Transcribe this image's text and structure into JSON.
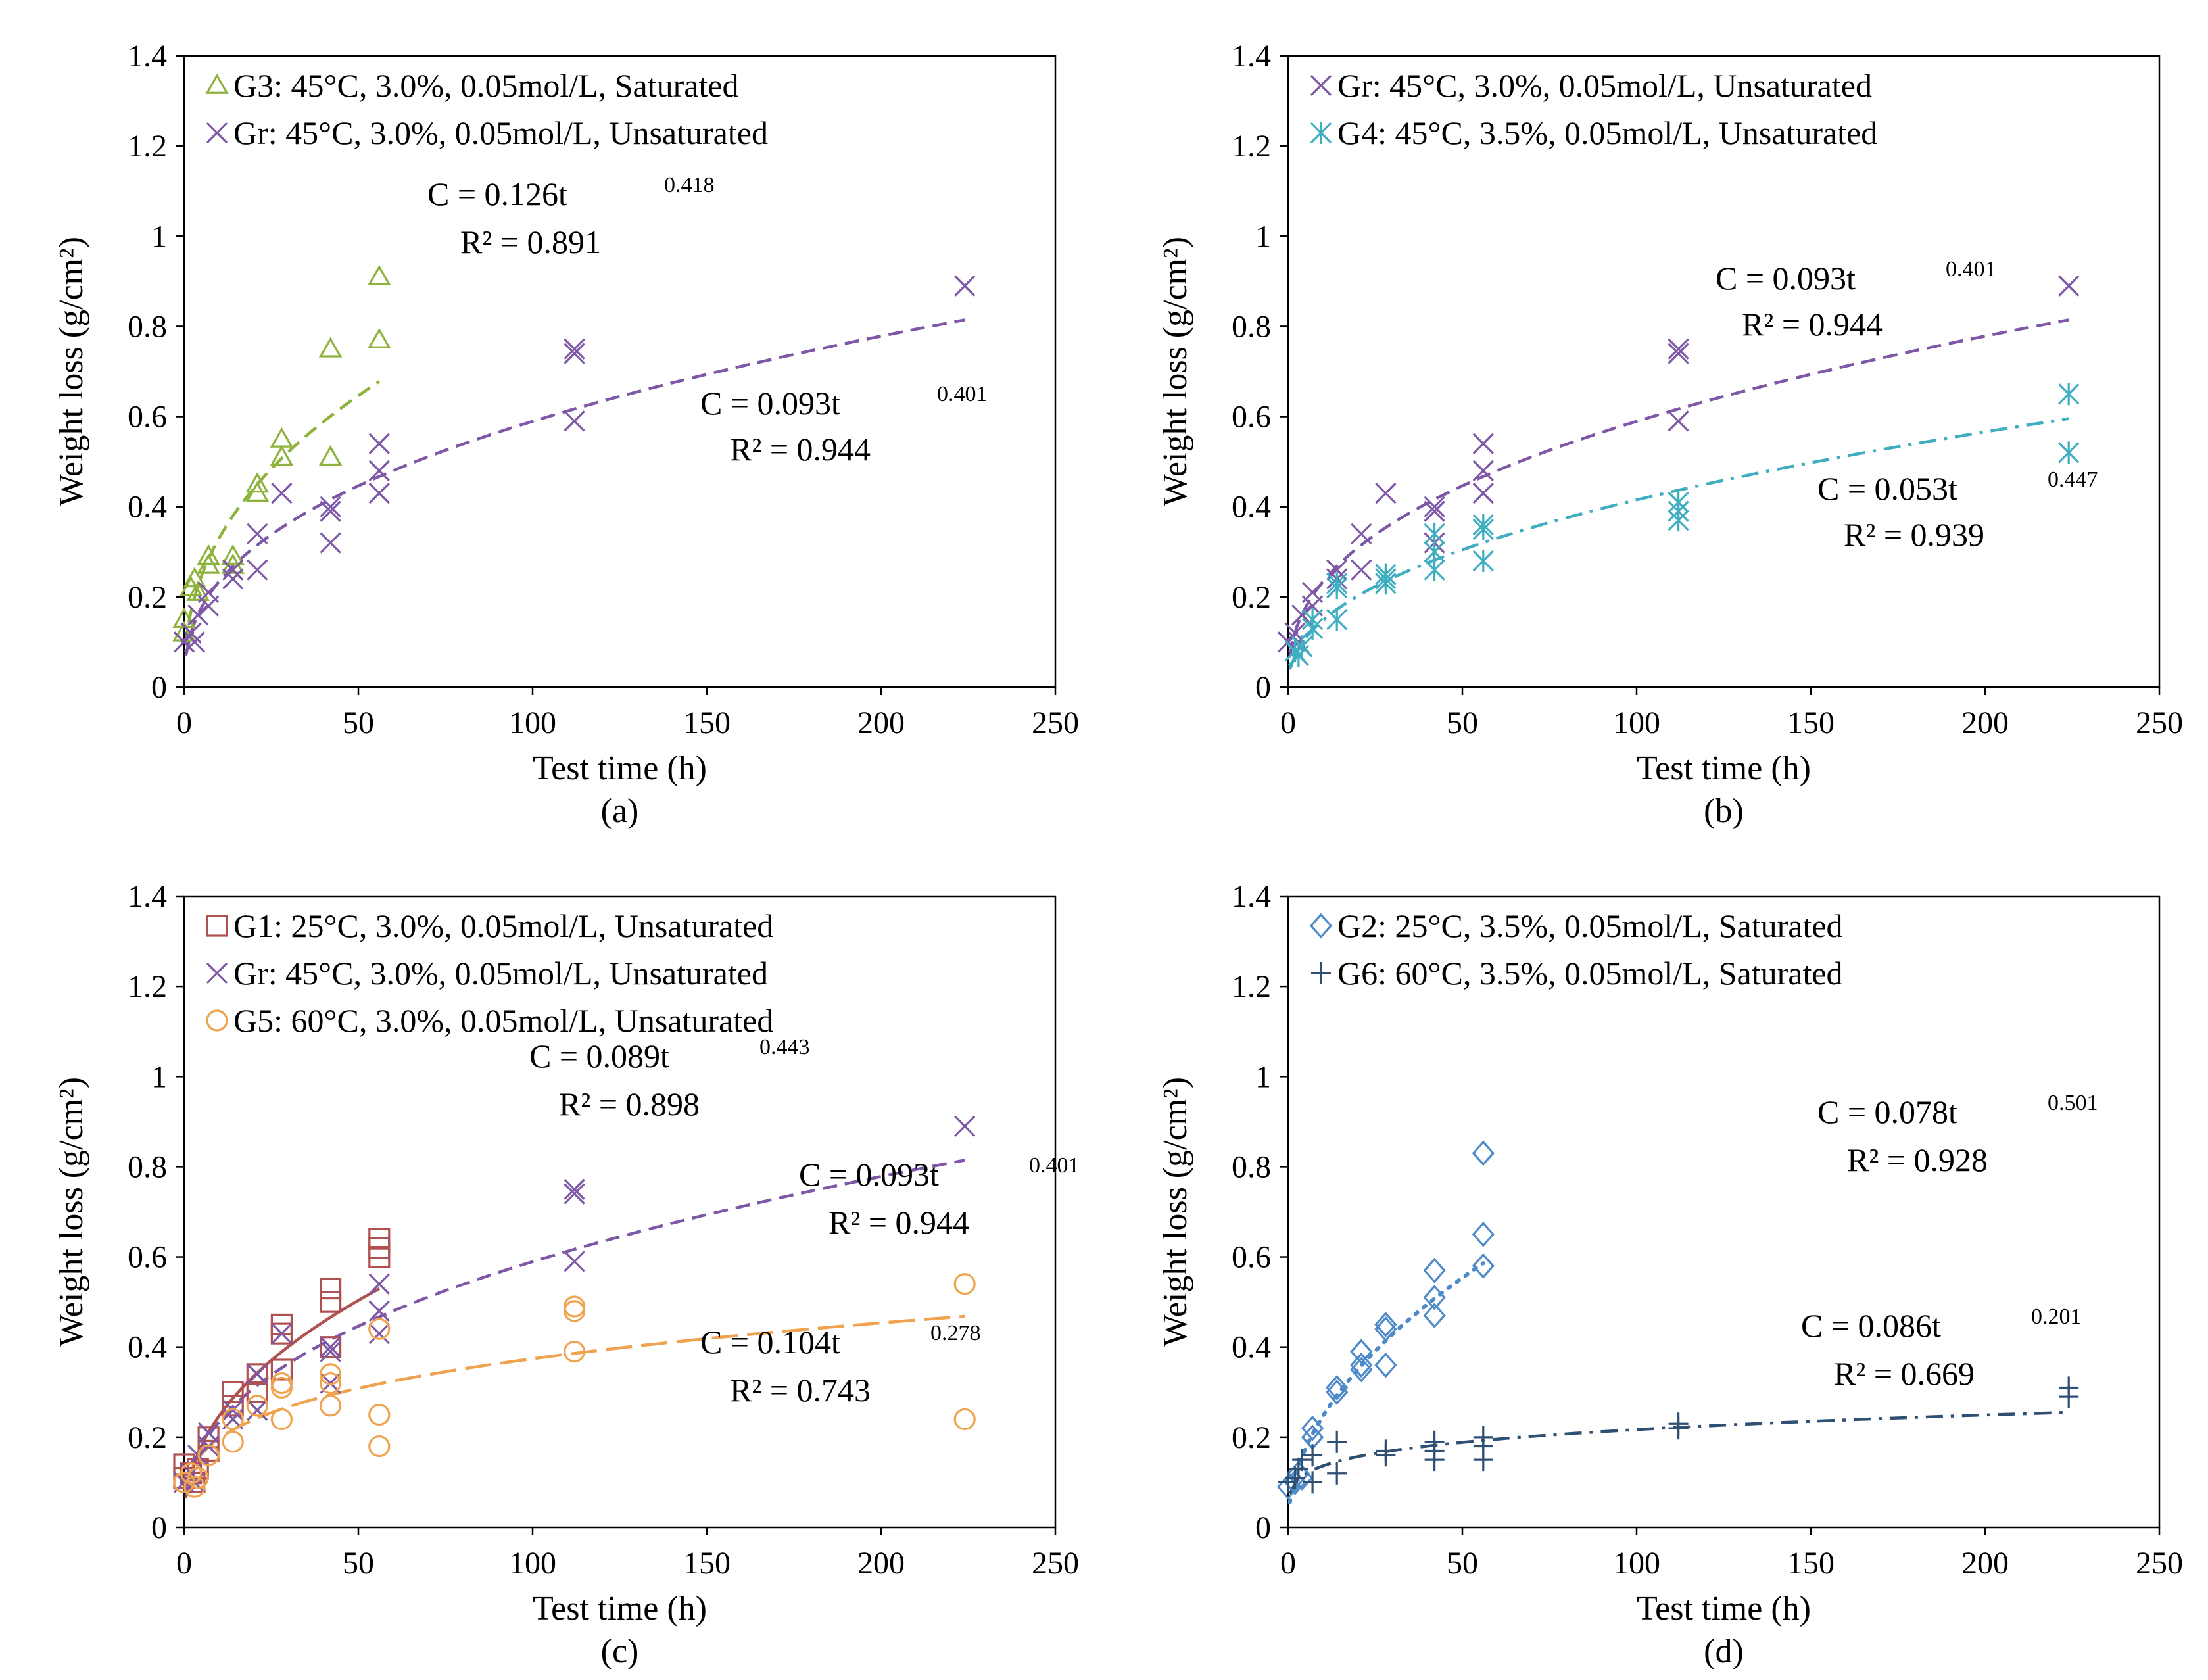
{
  "chart_data": [
    {
      "type": "scatter",
      "panel_label": "(a)",
      "xlabel": "Test time (h)",
      "ylabel": "Weight loss  (g/cm²)",
      "xlim": [
        0,
        250
      ],
      "ylim": [
        0,
        1.4
      ],
      "xticks": [
        0,
        50,
        100,
        150,
        200,
        250
      ],
      "yticks": [
        0,
        0.2,
        0.4,
        0.6,
        0.8,
        1,
        1.2,
        1.4
      ],
      "xtick_labels": [
        "0",
        "50",
        "100",
        "150",
        "200",
        "250"
      ],
      "ytick_labels": [
        "0",
        "0.2",
        "0.4",
        "0.6",
        "0.8",
        "1",
        "1.2",
        "1.4"
      ],
      "legend_position": "top-left",
      "series": [
        {
          "name": "G3: 45°C, 3.0%, 0.05mol/L, Saturated",
          "color": "#8db33d",
          "marker": "triangle",
          "fit_style": "dashed",
          "fit": {
            "a": 0.126,
            "b": 0.418
          },
          "points": [
            [
              0,
              0.12
            ],
            [
              0,
              0.15
            ],
            [
              2,
              0.22
            ],
            [
              3,
              0.24
            ],
            [
              4,
              0.21
            ],
            [
              7,
              0.27
            ],
            [
              7,
              0.29
            ],
            [
              14,
              0.27
            ],
            [
              14,
              0.29
            ],
            [
              21,
              0.43
            ],
            [
              21,
              0.45
            ],
            [
              28,
              0.51
            ],
            [
              28,
              0.55
            ],
            [
              42,
              0.51
            ],
            [
              42,
              0.75
            ],
            [
              56,
              0.77
            ],
            [
              56,
              0.91
            ]
          ]
        },
        {
          "name": "Gr: 45°C, 3.0%, 0.05mol/L, Unsaturated",
          "color": "#7e57a6",
          "marker": "x",
          "fit_style": "dashed",
          "fit": {
            "a": 0.093,
            "b": 0.401
          },
          "points": [
            [
              0,
              0.1
            ],
            [
              2,
              0.12
            ],
            [
              3,
              0.1
            ],
            [
              4,
              0.16
            ],
            [
              7,
              0.18
            ],
            [
              7,
              0.21
            ],
            [
              14,
              0.24
            ],
            [
              14,
              0.26
            ],
            [
              21,
              0.26
            ],
            [
              21,
              0.34
            ],
            [
              28,
              0.43
            ],
            [
              42,
              0.32
            ],
            [
              42,
              0.39
            ],
            [
              42,
              0.4
            ],
            [
              56,
              0.43
            ],
            [
              56,
              0.48
            ],
            [
              56,
              0.54
            ],
            [
              112,
              0.59
            ],
            [
              112,
              0.74
            ],
            [
              112,
              0.75
            ],
            [
              224,
              0.89
            ]
          ]
        }
      ],
      "annotations": [
        {
          "formula_prefix": "C = 0.126t",
          "exponent": "0.418",
          "r2": "R² = 0.891"
        },
        {
          "formula_prefix": "C = 0.093t",
          "exponent": "0.401",
          "r2": "R² = 0.944"
        }
      ]
    },
    {
      "type": "scatter",
      "panel_label": "(b)",
      "xlabel": "Test time (h)",
      "ylabel": "Weight loss  (g/cm²)",
      "xlim": [
        0,
        250
      ],
      "ylim": [
        0,
        1.4
      ],
      "xticks": [
        0,
        50,
        100,
        150,
        200,
        250
      ],
      "yticks": [
        0,
        0.2,
        0.4,
        0.6,
        0.8,
        1,
        1.2,
        1.4
      ],
      "xtick_labels": [
        "0",
        "50",
        "100",
        "150",
        "200",
        "250"
      ],
      "ytick_labels": [
        "0",
        "0.2",
        "0.4",
        "0.6",
        "0.8",
        "1",
        "1.2",
        "1.4"
      ],
      "legend_position": "top-left",
      "series": [
        {
          "name": "Gr: 45°C, 3.0%, 0.05mol/L, Unsaturated",
          "color": "#7e57a6",
          "marker": "x",
          "fit_style": "dashed",
          "fit": {
            "a": 0.093,
            "b": 0.401
          },
          "points": [
            [
              0,
              0.1
            ],
            [
              2,
              0.12
            ],
            [
              3,
              0.1
            ],
            [
              4,
              0.16
            ],
            [
              7,
              0.18
            ],
            [
              7,
              0.21
            ],
            [
              14,
              0.24
            ],
            [
              14,
              0.26
            ],
            [
              21,
              0.26
            ],
            [
              21,
              0.34
            ],
            [
              28,
              0.43
            ],
            [
              42,
              0.32
            ],
            [
              42,
              0.39
            ],
            [
              42,
              0.4
            ],
            [
              56,
              0.43
            ],
            [
              56,
              0.48
            ],
            [
              56,
              0.54
            ],
            [
              112,
              0.59
            ],
            [
              112,
              0.74
            ],
            [
              112,
              0.75
            ],
            [
              224,
              0.89
            ]
          ]
        },
        {
          "name": "G4: 45°C, 3.5%, 0.05mol/L, Unsaturated",
          "color": "#3eaec0",
          "marker": "asterisk",
          "fit_style": "dashdot",
          "fit": {
            "a": 0.053,
            "b": 0.447
          },
          "points": [
            [
              2,
              0.08
            ],
            [
              3,
              0.07
            ],
            [
              4,
              0.09
            ],
            [
              7,
              0.13
            ],
            [
              7,
              0.15
            ],
            [
              14,
              0.15
            ],
            [
              14,
              0.22
            ],
            [
              14,
              0.23
            ],
            [
              28,
              0.23
            ],
            [
              28,
              0.24
            ],
            [
              28,
              0.25
            ],
            [
              42,
              0.26
            ],
            [
              42,
              0.3
            ],
            [
              42,
              0.34
            ],
            [
              56,
              0.28
            ],
            [
              56,
              0.35
            ],
            [
              56,
              0.36
            ],
            [
              112,
              0.37
            ],
            [
              112,
              0.39
            ],
            [
              112,
              0.41
            ],
            [
              224,
              0.52
            ],
            [
              224,
              0.65
            ]
          ]
        }
      ],
      "annotations": [
        {
          "formula_prefix": "C = 0.093t",
          "exponent": "0.401",
          "r2": "R² = 0.944"
        },
        {
          "formula_prefix": "C = 0.053t",
          "exponent": "0.447",
          "r2": "R² = 0.939"
        }
      ]
    },
    {
      "type": "scatter",
      "panel_label": "(c)",
      "xlabel": "Test time (h)",
      "ylabel": "Weight loss  (g/cm²)",
      "xlim": [
        0,
        250
      ],
      "ylim": [
        0,
        1.4
      ],
      "xticks": [
        0,
        50,
        100,
        150,
        200,
        250
      ],
      "yticks": [
        0,
        0.2,
        0.4,
        0.6,
        0.8,
        1,
        1.2,
        1.4
      ],
      "xtick_labels": [
        "0",
        "50",
        "100",
        "150",
        "200",
        "250"
      ],
      "ytick_labels": [
        "0",
        "0.2",
        "0.4",
        "0.6",
        "0.8",
        "1",
        "1.2",
        "1.4"
      ],
      "legend_position": "top-left",
      "series": [
        {
          "name": "G1: 25°C, 3.0%, 0.05mol/L, Unsaturated",
          "color": "#b05151",
          "marker": "square",
          "fit_style": "solid",
          "fit": {
            "a": 0.089,
            "b": 0.443
          },
          "points": [
            [
              0,
              0.11
            ],
            [
              0,
              0.14
            ],
            [
              2,
              0.12
            ],
            [
              3,
              0.1
            ],
            [
              4,
              0.13
            ],
            [
              7,
              0.17
            ],
            [
              7,
              0.2
            ],
            [
              14,
              0.27
            ],
            [
              14,
              0.3
            ],
            [
              21,
              0.3
            ],
            [
              21,
              0.34
            ],
            [
              28,
              0.35
            ],
            [
              28,
              0.43
            ],
            [
              28,
              0.45
            ],
            [
              42,
              0.4
            ],
            [
              42,
              0.5
            ],
            [
              42,
              0.53
            ],
            [
              56,
              0.6
            ],
            [
              56,
              0.62
            ],
            [
              56,
              0.64
            ]
          ]
        },
        {
          "name": "Gr: 45°C, 3.0%, 0.05mol/L, Unsaturated",
          "color": "#7e57a6",
          "marker": "x",
          "fit_style": "dashed",
          "fit": {
            "a": 0.093,
            "b": 0.401
          },
          "points": [
            [
              0,
              0.1
            ],
            [
              2,
              0.12
            ],
            [
              3,
              0.1
            ],
            [
              4,
              0.16
            ],
            [
              7,
              0.18
            ],
            [
              7,
              0.21
            ],
            [
              14,
              0.24
            ],
            [
              14,
              0.26
            ],
            [
              21,
              0.26
            ],
            [
              21,
              0.34
            ],
            [
              28,
              0.43
            ],
            [
              42,
              0.32
            ],
            [
              42,
              0.39
            ],
            [
              42,
              0.4
            ],
            [
              56,
              0.43
            ],
            [
              56,
              0.48
            ],
            [
              56,
              0.54
            ],
            [
              112,
              0.59
            ],
            [
              112,
              0.74
            ],
            [
              112,
              0.75
            ],
            [
              224,
              0.89
            ]
          ]
        },
        {
          "name": "G5: 60°C, 3.0%, 0.05mol/L, Unsaturated",
          "color": "#f0a34e",
          "marker": "circle",
          "fit_style": "longdash",
          "fit": {
            "a": 0.104,
            "b": 0.278
          },
          "points": [
            [
              0,
              0.1
            ],
            [
              2,
              0.12
            ],
            [
              3,
              0.09
            ],
            [
              4,
              0.11
            ],
            [
              7,
              0.16
            ],
            [
              14,
              0.19
            ],
            [
              14,
              0.24
            ],
            [
              21,
              0.27
            ],
            [
              28,
              0.24
            ],
            [
              28,
              0.31
            ],
            [
              28,
              0.32
            ],
            [
              42,
              0.27
            ],
            [
              42,
              0.32
            ],
            [
              42,
              0.34
            ],
            [
              56,
              0.18
            ],
            [
              56,
              0.25
            ],
            [
              56,
              0.44
            ],
            [
              112,
              0.39
            ],
            [
              112,
              0.48
            ],
            [
              112,
              0.49
            ],
            [
              224,
              0.24
            ],
            [
              224,
              0.54
            ]
          ]
        }
      ],
      "annotations": [
        {
          "formula_prefix": "C = 0.089t",
          "exponent": "0.443",
          "r2": "R² = 0.898"
        },
        {
          "formula_prefix": "C = 0.093t",
          "exponent": "0.401",
          "r2": "R² = 0.944"
        },
        {
          "formula_prefix": "C = 0.104t",
          "exponent": "0.278",
          "r2": "R² = 0.743"
        }
      ]
    },
    {
      "type": "scatter",
      "panel_label": "(d)",
      "xlabel": "Test time (h)",
      "ylabel": "Weight loss  (g/cm²)",
      "xlim": [
        0,
        250
      ],
      "ylim": [
        0,
        1.4
      ],
      "xticks": [
        0,
        50,
        100,
        150,
        200,
        250
      ],
      "yticks": [
        0,
        0.2,
        0.4,
        0.6,
        0.8,
        1,
        1.2,
        1.4
      ],
      "xtick_labels": [
        "0",
        "50",
        "100",
        "150",
        "200",
        "250"
      ],
      "ytick_labels": [
        "0",
        "0.2",
        "0.4",
        "0.6",
        "0.8",
        "1",
        "1.2",
        "1.4"
      ],
      "legend_position": "top-left",
      "series": [
        {
          "name": "G2: 25°C, 3.5%, 0.05mol/L, Saturated",
          "color": "#4d8ac7",
          "marker": "diamond",
          "fit_style": "dotted",
          "fit": {
            "a": 0.078,
            "b": 0.501
          },
          "points": [
            [
              0,
              0.09
            ],
            [
              2,
              0.1
            ],
            [
              3,
              0.12
            ],
            [
              4,
              0.11
            ],
            [
              7,
              0.2
            ],
            [
              7,
              0.22
            ],
            [
              14,
              0.3
            ],
            [
              14,
              0.31
            ],
            [
              21,
              0.35
            ],
            [
              21,
              0.36
            ],
            [
              21,
              0.39
            ],
            [
              28,
              0.36
            ],
            [
              28,
              0.44
            ],
            [
              28,
              0.45
            ],
            [
              42,
              0.47
            ],
            [
              42,
              0.51
            ],
            [
              42,
              0.57
            ],
            [
              56,
              0.58
            ],
            [
              56,
              0.65
            ],
            [
              56,
              0.83
            ]
          ]
        },
        {
          "name": "G6: 60°C, 3.5%, 0.05mol/L, Saturated",
          "color": "#2f4f73",
          "marker": "plus",
          "fit_style": "dashdot",
          "fit": {
            "a": 0.086,
            "b": 0.201
          },
          "points": [
            [
              0,
              0.1
            ],
            [
              2,
              0.11
            ],
            [
              3,
              0.13
            ],
            [
              4,
              0.15
            ],
            [
              7,
              0.1
            ],
            [
              7,
              0.16
            ],
            [
              14,
              0.12
            ],
            [
              14,
              0.19
            ],
            [
              28,
              0.16
            ],
            [
              28,
              0.17
            ],
            [
              42,
              0.15
            ],
            [
              42,
              0.17
            ],
            [
              42,
              0.19
            ],
            [
              56,
              0.15
            ],
            [
              56,
              0.18
            ],
            [
              56,
              0.2
            ],
            [
              112,
              0.22
            ],
            [
              112,
              0.23
            ],
            [
              224,
              0.29
            ],
            [
              224,
              0.31
            ]
          ]
        }
      ],
      "annotations": [
        {
          "formula_prefix": "C = 0.078t",
          "exponent": "0.501",
          "r2": "R² = 0.928"
        },
        {
          "formula_prefix": "C = 0.086t",
          "exponent": "0.201",
          "r2": "R² = 0.669"
        }
      ]
    }
  ]
}
